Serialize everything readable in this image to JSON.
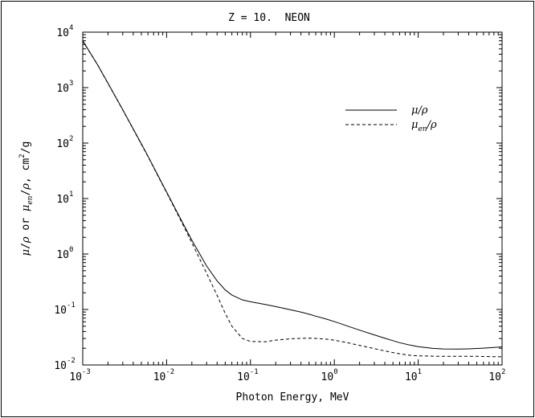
{
  "chart_data": {
    "type": "line",
    "title": "Z = 10.  NEON",
    "xlabel": "Photon Energy, MeV",
    "ylabel": {
      "mu": "μ",
      "rho": "ρ",
      "or": "or",
      "en": "en",
      "unit": "cm",
      "unit_exp": "2",
      "unit_den": "g"
    },
    "x_scale": "log",
    "y_scale": "log",
    "xlim": [
      0.001,
      100
    ],
    "ylim": [
      0.01,
      10000
    ],
    "x_ticks": [
      {
        "base": "10",
        "exp": "-3"
      },
      {
        "base": "10",
        "exp": "-2"
      },
      {
        "base": "10",
        "exp": "-1"
      },
      {
        "base": "10",
        "exp": "0"
      },
      {
        "base": "10",
        "exp": "1"
      },
      {
        "base": "10",
        "exp": "2"
      }
    ],
    "y_ticks": [
      {
        "base": "10",
        "exp": "-2"
      },
      {
        "base": "10",
        "exp": "-1"
      },
      {
        "base": "10",
        "exp": "0"
      },
      {
        "base": "10",
        "exp": "1"
      },
      {
        "base": "10",
        "exp": "2"
      },
      {
        "base": "10",
        "exp": "3"
      },
      {
        "base": "10",
        "exp": "4"
      }
    ],
    "legend_position": "top-right",
    "series": [
      {
        "name": "μ/ρ",
        "legend_main": "μ/ρ",
        "style": "solid",
        "x": [
          0.001,
          0.0015,
          0.002,
          0.003,
          0.004,
          0.005,
          0.006,
          0.008,
          0.01,
          0.015,
          0.02,
          0.03,
          0.04,
          0.05,
          0.06,
          0.08,
          0.1,
          0.15,
          0.2,
          0.3,
          0.4,
          0.5,
          0.6,
          0.8,
          1,
          1.25,
          1.5,
          2,
          3,
          4,
          5,
          6,
          8,
          10,
          15,
          20,
          30,
          40,
          50,
          60,
          80,
          100
        ],
        "y": [
          7000,
          2600,
          1200,
          400,
          180,
          97,
          58,
          25,
          13.1,
          4.05,
          1.78,
          0.608,
          0.328,
          0.225,
          0.182,
          0.149,
          0.138,
          0.123,
          0.113,
          0.0989,
          0.0896,
          0.0823,
          0.0758,
          0.0673,
          0.0605,
          0.054,
          0.0491,
          0.0424,
          0.0348,
          0.0303,
          0.0274,
          0.0252,
          0.0228,
          0.0214,
          0.0199,
          0.0194,
          0.0193,
          0.0195,
          0.0198,
          0.0201,
          0.0207,
          0.0212
        ]
      },
      {
        "name": "μen/ρ",
        "legend_main": "μ",
        "legend_sub": "en",
        "legend_tail": "/ρ",
        "style": "dashed",
        "x": [
          0.001,
          0.0015,
          0.002,
          0.003,
          0.004,
          0.005,
          0.006,
          0.008,
          0.01,
          0.015,
          0.02,
          0.03,
          0.04,
          0.05,
          0.06,
          0.08,
          0.1,
          0.15,
          0.2,
          0.3,
          0.4,
          0.5,
          0.6,
          0.8,
          1,
          1.25,
          1.5,
          2,
          3,
          4,
          5,
          6,
          8,
          10,
          15,
          20,
          30,
          40,
          50,
          60,
          80,
          100
        ],
        "y": [
          6950,
          2580,
          1190,
          396,
          178,
          95,
          57,
          24.5,
          12.8,
          3.85,
          1.6,
          0.45,
          0.18,
          0.085,
          0.05,
          0.03,
          0.0265,
          0.0262,
          0.028,
          0.0296,
          0.0302,
          0.0304,
          0.0301,
          0.0292,
          0.028,
          0.0262,
          0.0248,
          0.0225,
          0.0197,
          0.0179,
          0.0167,
          0.0159,
          0.0149,
          0.0146,
          0.0144,
          0.0143,
          0.0143,
          0.0143,
          0.0143,
          0.0142,
          0.0141,
          0.014
        ]
      }
    ]
  }
}
